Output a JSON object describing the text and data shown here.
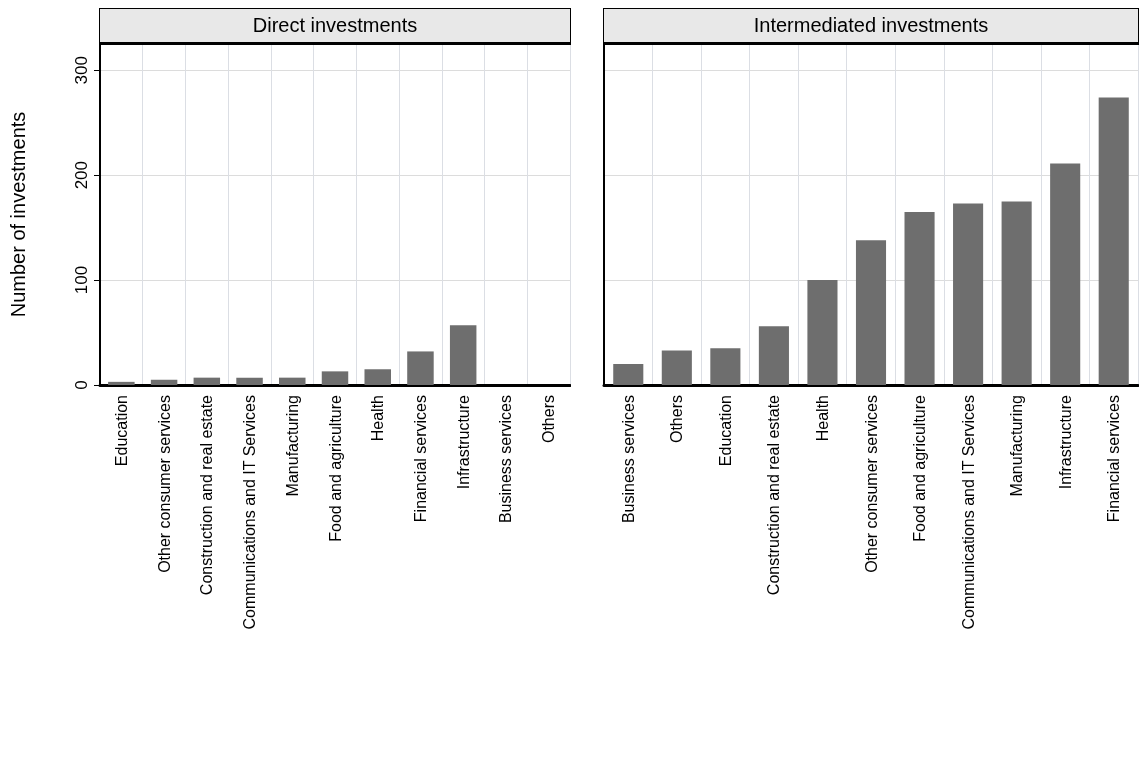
{
  "chart_data": [
    {
      "type": "bar",
      "title": "Direct investments",
      "ylabel": "Number of investments",
      "categories": [
        "Education",
        "Other consumer services",
        "Construction and real estate",
        "Communications and IT Services",
        "Manufacturing",
        "Food and agriculture",
        "Health",
        "Financial services",
        "Infrastructure",
        "Business services",
        "Others"
      ],
      "values": [
        3,
        5,
        7,
        7,
        7,
        13,
        15,
        32,
        57,
        0,
        0
      ],
      "color": "#6e6e6e",
      "ylim": [
        0,
        325
      ],
      "yticks": [
        0,
        100,
        200,
        300
      ],
      "grid": true
    },
    {
      "type": "bar",
      "title": "Intermediated investments",
      "categories": [
        "Business services",
        "Others",
        "Education",
        "Construction and real estate",
        "Health",
        "Other consumer services",
        "Food and agriculture",
        "Communications and IT Services",
        "Manufacturing",
        "Infrastructure",
        "Financial services"
      ],
      "values": [
        20,
        33,
        35,
        56,
        100,
        138,
        165,
        173,
        175,
        211,
        274
      ],
      "color": "#6e6e6e",
      "ylim": [
        0,
        325
      ],
      "yticks": [
        0,
        100,
        200,
        300
      ],
      "grid": true,
      "tick_labels": "x"
    }
  ]
}
